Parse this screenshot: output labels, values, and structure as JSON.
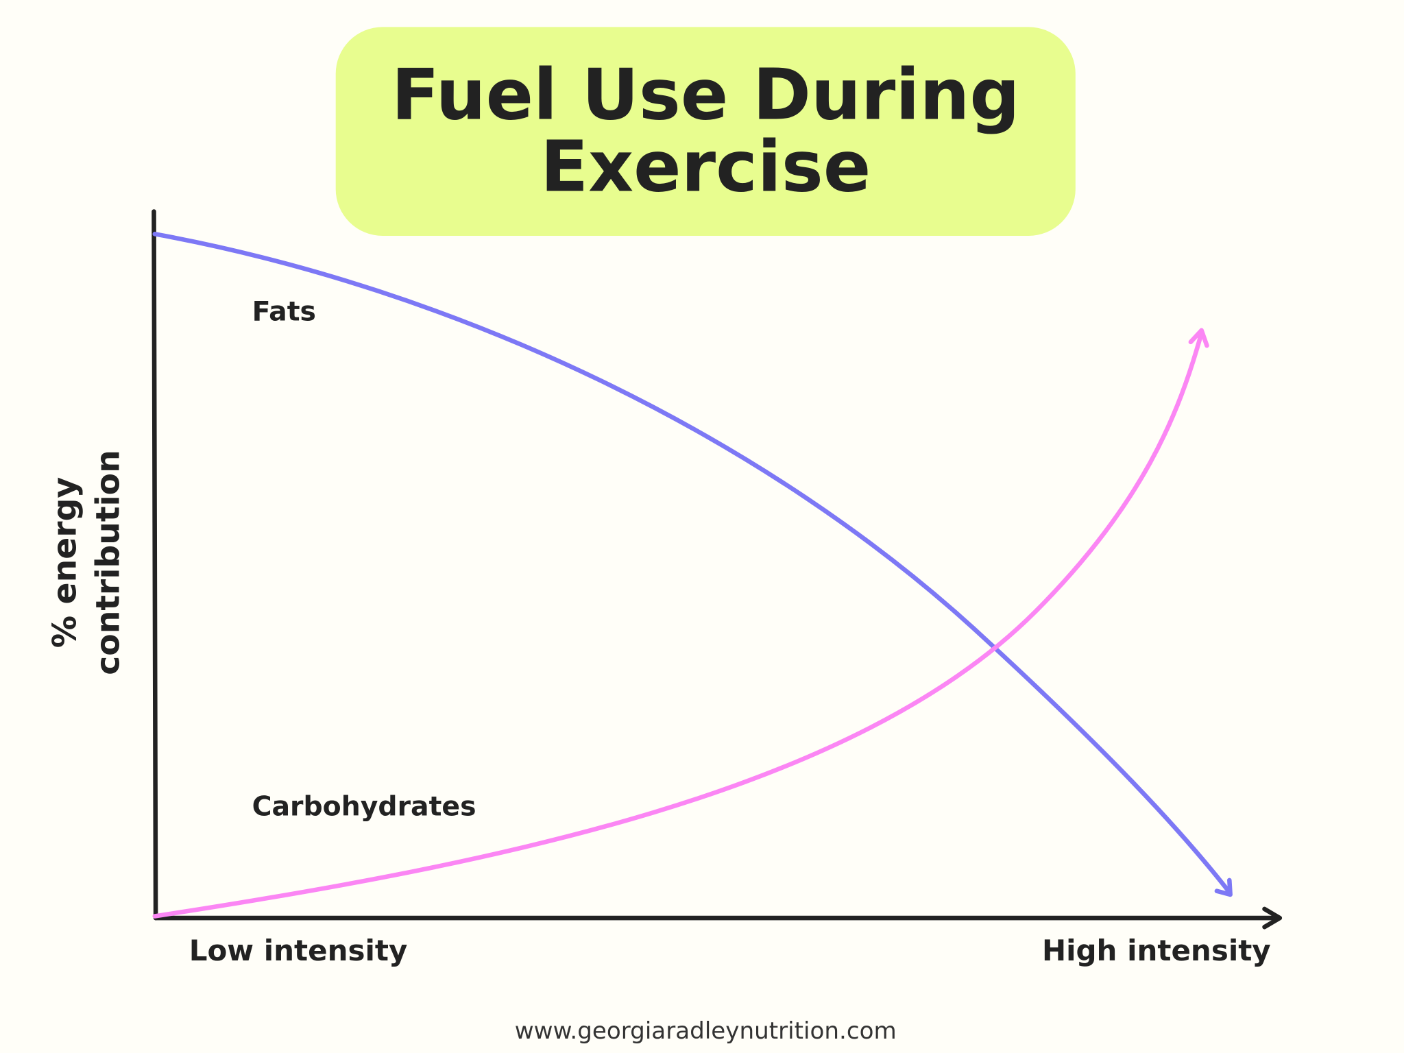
{
  "title": {
    "lines": [
      "Fuel Use During",
      "Exercise"
    ]
  },
  "y_axis_label": {
    "lines": [
      "% energy",
      "contribution"
    ]
  },
  "x_axis": {
    "low": "Low intensity",
    "high": "High intensity"
  },
  "curves": [
    {
      "label": "Fats"
    },
    {
      "label": "Carbohydrates"
    }
  ],
  "footer": "www.georgiaradleynutrition.com"
}
